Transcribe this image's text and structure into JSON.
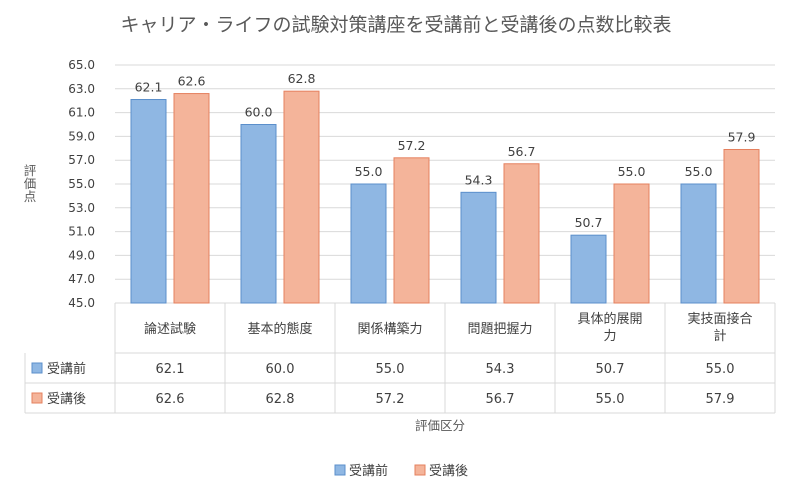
{
  "chart_data": {
    "type": "bar",
    "title": "キャリア・ライフの試験対策講座を受講前と受講後の点数比較表",
    "xlabel": "評価区分",
    "ylabel": "評価点",
    "ylim": [
      45.0,
      65.0
    ],
    "yticks": [
      "45.0",
      "47.0",
      "49.0",
      "51.0",
      "53.0",
      "55.0",
      "57.0",
      "59.0",
      "61.0",
      "63.0",
      "65.0"
    ],
    "categories": [
      [
        "論述試験"
      ],
      [
        "基本的態度"
      ],
      [
        "関係構築力"
      ],
      [
        "問題把握力"
      ],
      [
        "具体的展開",
        "力"
      ],
      [
        "実技面接合",
        "計"
      ]
    ],
    "series": [
      {
        "name": "受講前",
        "values": [
          62.1,
          60.0,
          55.0,
          54.3,
          50.7,
          55.0
        ],
        "labels": [
          "62.1",
          "60.0",
          "55.0",
          "54.3",
          "50.7",
          "55.0"
        ],
        "color": "#8FB7E3",
        "stroke": "#5B8FCB"
      },
      {
        "name": "受講後",
        "values": [
          62.6,
          62.8,
          57.2,
          56.7,
          55.0,
          57.9
        ],
        "labels": [
          "62.6",
          "62.8",
          "57.2",
          "56.7",
          "55.0",
          "57.9"
        ],
        "color": "#F4B49A",
        "stroke": "#E5805E"
      }
    ],
    "grid": true,
    "legend_position": "bottom",
    "data_table": true
  }
}
